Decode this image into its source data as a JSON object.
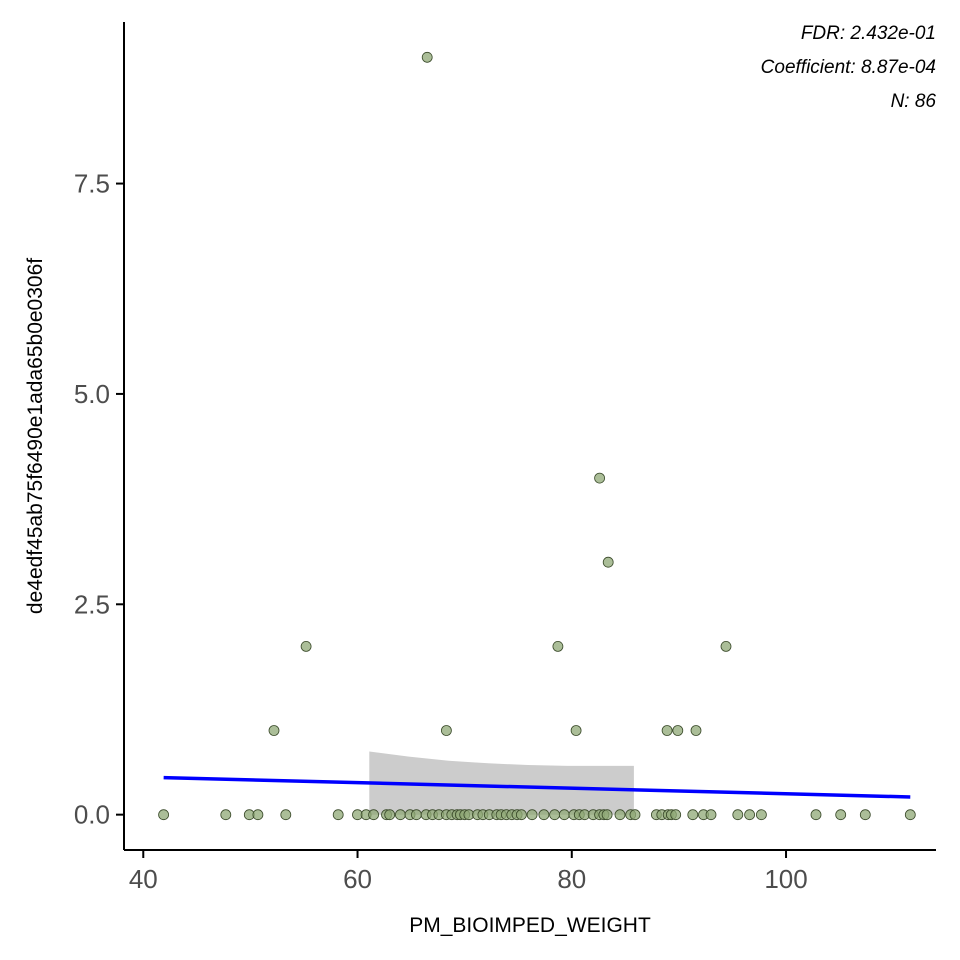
{
  "chart_data": {
    "type": "scatter",
    "title": "",
    "xlabel": "PM_BIOIMPED_WEIGHT",
    "ylabel": "de4edf45ab75f6490e1ada65b0e0306f",
    "xlim": [
      38.2,
      114.0
    ],
    "ylim": [
      -0.42,
      9.42
    ],
    "x_ticks": [
      40,
      60,
      80,
      100
    ],
    "y_ticks": [
      0.0,
      2.5,
      5.0,
      7.5
    ],
    "x_tick_labels": [
      "40",
      "60",
      "80",
      "100"
    ],
    "y_tick_labels": [
      "0.0",
      "2.5",
      "5.0",
      "7.5"
    ],
    "grid": false,
    "annotations": [
      "FDR: 2.432e-01",
      "Coefficient: 8.87e-04",
      "N: 86"
    ],
    "colors": {
      "points": "#8fa876",
      "point_stroke": "#3a4a2a",
      "fit_line": "#0000ff",
      "ci_band": "#cccccc"
    },
    "points": [
      {
        "x": 41.9,
        "y": 0
      },
      {
        "x": 47.7,
        "y": 0
      },
      {
        "x": 49.9,
        "y": 0
      },
      {
        "x": 50.7,
        "y": 0
      },
      {
        "x": 53.3,
        "y": 0
      },
      {
        "x": 58.2,
        "y": 0
      },
      {
        "x": 60.0,
        "y": 0
      },
      {
        "x": 60.8,
        "y": 0
      },
      {
        "x": 61.5,
        "y": 0
      },
      {
        "x": 62.7,
        "y": 0
      },
      {
        "x": 63.0,
        "y": 0
      },
      {
        "x": 64.0,
        "y": 0
      },
      {
        "x": 64.9,
        "y": 0
      },
      {
        "x": 65.5,
        "y": 0
      },
      {
        "x": 66.4,
        "y": 0
      },
      {
        "x": 67.0,
        "y": 0
      },
      {
        "x": 67.6,
        "y": 0
      },
      {
        "x": 68.3,
        "y": 0
      },
      {
        "x": 68.8,
        "y": 0
      },
      {
        "x": 69.3,
        "y": 0
      },
      {
        "x": 69.6,
        "y": 0
      },
      {
        "x": 70.0,
        "y": 0
      },
      {
        "x": 70.4,
        "y": 0
      },
      {
        "x": 71.2,
        "y": 0
      },
      {
        "x": 71.7,
        "y": 0
      },
      {
        "x": 72.3,
        "y": 0
      },
      {
        "x": 73.0,
        "y": 0
      },
      {
        "x": 73.4,
        "y": 0
      },
      {
        "x": 73.9,
        "y": 0
      },
      {
        "x": 74.4,
        "y": 0
      },
      {
        "x": 74.9,
        "y": 0
      },
      {
        "x": 75.3,
        "y": 0
      },
      {
        "x": 76.3,
        "y": 0
      },
      {
        "x": 77.4,
        "y": 0
      },
      {
        "x": 78.4,
        "y": 0
      },
      {
        "x": 79.3,
        "y": 0
      },
      {
        "x": 80.2,
        "y": 0
      },
      {
        "x": 80.7,
        "y": 0
      },
      {
        "x": 81.2,
        "y": 0
      },
      {
        "x": 82.0,
        "y": 0
      },
      {
        "x": 82.6,
        "y": 0
      },
      {
        "x": 83.0,
        "y": 0
      },
      {
        "x": 83.3,
        "y": 0
      },
      {
        "x": 84.5,
        "y": 0
      },
      {
        "x": 85.5,
        "y": 0
      },
      {
        "x": 85.9,
        "y": 0
      },
      {
        "x": 87.9,
        "y": 0
      },
      {
        "x": 88.4,
        "y": 0
      },
      {
        "x": 89.0,
        "y": 0
      },
      {
        "x": 89.3,
        "y": 0
      },
      {
        "x": 89.7,
        "y": 0
      },
      {
        "x": 91.3,
        "y": 0
      },
      {
        "x": 92.3,
        "y": 0
      },
      {
        "x": 93.0,
        "y": 0
      },
      {
        "x": 95.5,
        "y": 0
      },
      {
        "x": 96.6,
        "y": 0
      },
      {
        "x": 97.7,
        "y": 0
      },
      {
        "x": 102.8,
        "y": 0
      },
      {
        "x": 105.1,
        "y": 0
      },
      {
        "x": 107.4,
        "y": 0
      },
      {
        "x": 111.6,
        "y": 0
      },
      {
        "x": 52.2,
        "y": 1
      },
      {
        "x": 68.3,
        "y": 1
      },
      {
        "x": 80.4,
        "y": 1
      },
      {
        "x": 88.9,
        "y": 1
      },
      {
        "x": 89.9,
        "y": 1
      },
      {
        "x": 91.6,
        "y": 1
      },
      {
        "x": 55.2,
        "y": 2
      },
      {
        "x": 78.7,
        "y": 2
      },
      {
        "x": 94.4,
        "y": 2
      },
      {
        "x": 83.4,
        "y": 3
      },
      {
        "x": 82.6,
        "y": 4
      },
      {
        "x": 66.5,
        "y": 9
      }
    ],
    "fit": {
      "x": [
        41.9,
        111.6
      ],
      "y": [
        0.44,
        0.21
      ]
    },
    "ci_band": {
      "x": [
        61.1,
        64.8,
        68.5,
        72.2,
        75.9,
        79.6,
        83.3,
        85.8
      ],
      "upper": [
        0.75,
        0.69,
        0.64,
        0.61,
        0.59,
        0.58,
        0.58,
        0.58
      ],
      "lower": [
        0.0,
        0.0,
        0.0,
        0.0,
        0.0,
        0.0,
        0.0,
        0.0
      ]
    }
  }
}
